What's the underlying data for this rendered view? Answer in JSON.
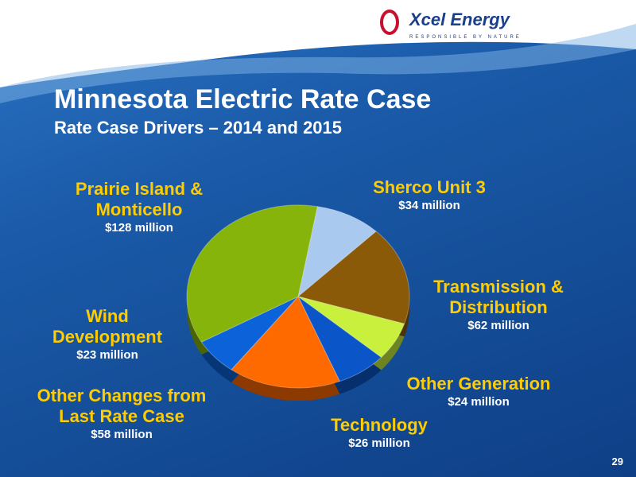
{
  "brand": {
    "name": "Xcel Energy",
    "tagline": "RESPONSIBLE BY NATURE"
  },
  "page_number": 29,
  "chart_data": {
    "type": "pie",
    "title": "Minnesota Electric Rate Case",
    "subtitle": "Rate Case Drivers – 2014 and 2015",
    "categories": [
      "Sherco Unit 3",
      "Transmission & Distribution",
      "Other Generation",
      "Technology",
      "Other Changes from Last Rate Case",
      "Wind Development",
      "Prairie Island & Monticello"
    ],
    "values": [
      34,
      62,
      24,
      26,
      58,
      23,
      128
    ],
    "value_labels": [
      "$34 million",
      "$62 million",
      "$24 million",
      "$26 million",
      "$58 million",
      "$23 million",
      "$128 million"
    ],
    "colors": [
      "#a9c9ee",
      "#8a5a08",
      "#c8f03c",
      "#0a56c8",
      "#ff6a00",
      "#0c62d8",
      "#86b40a"
    ]
  }
}
